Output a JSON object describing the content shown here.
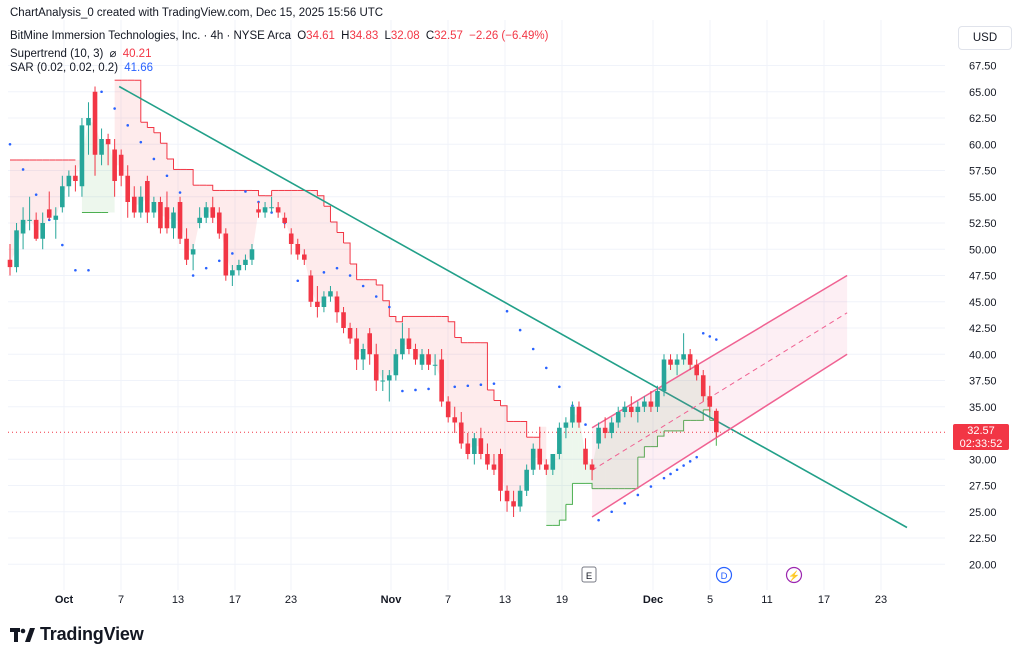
{
  "header": {
    "caption": "ChartAnalysis_0 created with TradingView.com, Dec 15, 2025 15:56 UTC",
    "symbol": "BitMine Immersion Technologies, Inc. · 4h · NYSE Arca",
    "ohlc": {
      "o_label": "O",
      "o_value": "34.61",
      "h_label": "H",
      "h_value": "34.83",
      "l_label": "L",
      "l_value": "32.08",
      "c_label": "C",
      "c_value": "32.57",
      "change": "−2.26 (−6.49%)"
    },
    "supertrend_label": "Supertrend (10, 3)",
    "supertrend_symbol": "⌀",
    "supertrend_value": "40.21",
    "sar_label": "SAR (0.02, 0.02, 0.2)",
    "sar_value": "41.66"
  },
  "currency_button": "USD",
  "price_tag": {
    "price": "32.57",
    "countdown": "02:33:52"
  },
  "brand": "TradingView",
  "event_markers": [
    {
      "letter": "E",
      "x_label": "21"
    },
    {
      "letter": "D",
      "x_label": "6"
    },
    {
      "letter": "⚡",
      "x_label": "13"
    }
  ],
  "colors": {
    "up": "#26a69a",
    "down": "#f23645",
    "trendline": "#22a089",
    "channel": "#f06292",
    "sar": "#2962ff",
    "supertrend_down": "#f23645",
    "supertrend_up": "#4caf50"
  },
  "chart_data": {
    "type": "candlestick",
    "timeframe": "4h",
    "x_tick_labels": [
      "Oct",
      "7",
      "13",
      "17",
      "23",
      "Nov",
      "7",
      "13",
      "19",
      "Dec",
      "5",
      "11",
      "17",
      "23"
    ],
    "y_tick_labels": [
      "67.50",
      "65.00",
      "62.50",
      "60.00",
      "57.50",
      "55.00",
      "52.50",
      "50.00",
      "47.50",
      "45.00",
      "42.50",
      "40.00",
      "37.50",
      "35.00",
      "30.00",
      "27.50",
      "25.00",
      "22.50",
      "20.00"
    ],
    "ylim": [
      18.5,
      70
    ],
    "last_price": 32.57,
    "candles": [
      {
        "o": 49.0,
        "h": 50.5,
        "l": 47.5,
        "c": 48.3
      },
      {
        "o": 48.3,
        "h": 52.5,
        "l": 47.8,
        "c": 51.8
      },
      {
        "o": 51.5,
        "h": 54.0,
        "l": 50.0,
        "c": 52.8
      },
      {
        "o": 52.8,
        "h": 55.0,
        "l": 51.8,
        "c": 52.8
      },
      {
        "o": 52.8,
        "h": 53.5,
        "l": 50.8,
        "c": 51.0
      },
      {
        "o": 51.0,
        "h": 53.5,
        "l": 50.0,
        "c": 52.5
      },
      {
        "o": 53.8,
        "h": 55.5,
        "l": 52.8,
        "c": 53.0
      },
      {
        "o": 52.8,
        "h": 54.0,
        "l": 51.0,
        "c": 53.2
      },
      {
        "o": 54.0,
        "h": 57.0,
        "l": 53.5,
        "c": 56.0
      },
      {
        "o": 56.0,
        "h": 57.5,
        "l": 55.0,
        "c": 57.0
      },
      {
        "o": 57.0,
        "h": 58.0,
        "l": 55.5,
        "c": 56.5
      },
      {
        "o": 56.0,
        "h": 62.5,
        "l": 55.0,
        "c": 61.8
      },
      {
        "o": 61.8,
        "h": 64.0,
        "l": 59.0,
        "c": 62.5
      },
      {
        "o": 65.0,
        "h": 65.5,
        "l": 57.0,
        "c": 59.0
      },
      {
        "o": 59.0,
        "h": 61.5,
        "l": 58.0,
        "c": 60.5
      },
      {
        "o": 60.5,
        "h": 61.0,
        "l": 58.0,
        "c": 60.0
      },
      {
        "o": 59.5,
        "h": 60.5,
        "l": 55.0,
        "c": 56.5
      },
      {
        "o": 59.0,
        "h": 59.5,
        "l": 56.0,
        "c": 57.0
      },
      {
        "o": 57.0,
        "h": 58.0,
        "l": 53.0,
        "c": 54.5
      },
      {
        "o": 55.0,
        "h": 56.0,
        "l": 53.0,
        "c": 53.5
      },
      {
        "o": 53.5,
        "h": 56.0,
        "l": 53.0,
        "c": 55.0
      },
      {
        "o": 56.5,
        "h": 57.0,
        "l": 52.5,
        "c": 53.5
      },
      {
        "o": 53.5,
        "h": 55.0,
        "l": 53.0,
        "c": 54.5
      },
      {
        "o": 54.5,
        "h": 55.0,
        "l": 51.5,
        "c": 52.0
      },
      {
        "o": 54.0,
        "h": 55.5,
        "l": 51.5,
        "c": 52.0
      },
      {
        "o": 52.0,
        "h": 54.0,
        "l": 51.0,
        "c": 53.5
      },
      {
        "o": 54.5,
        "h": 55.0,
        "l": 50.5,
        "c": 51.0
      },
      {
        "o": 51.0,
        "h": 52.0,
        "l": 48.5,
        "c": 49.0
      },
      {
        "o": 49.5,
        "h": 50.5,
        "l": 48.0,
        "c": 50.0
      },
      {
        "o": 52.5,
        "h": 54.0,
        "l": 52.0,
        "c": 53.0
      },
      {
        "o": 53.0,
        "h": 54.5,
        "l": 52.5,
        "c": 54.0
      },
      {
        "o": 54.0,
        "h": 55.0,
        "l": 52.5,
        "c": 53.0
      },
      {
        "o": 53.5,
        "h": 54.0,
        "l": 51.0,
        "c": 51.5
      },
      {
        "o": 51.5,
        "h": 52.0,
        "l": 47.0,
        "c": 47.5
      },
      {
        "o": 47.5,
        "h": 48.5,
        "l": 46.5,
        "c": 48.0
      },
      {
        "o": 48.0,
        "h": 49.0,
        "l": 47.5,
        "c": 48.5
      },
      {
        "o": 48.5,
        "h": 49.5,
        "l": 48.0,
        "c": 49.0
      },
      {
        "o": 49.0,
        "h": 50.5,
        "l": 48.5,
        "c": 50.0
      },
      {
        "o": 53.8,
        "h": 54.5,
        "l": 53.0,
        "c": 53.5
      },
      {
        "o": 53.5,
        "h": 54.5,
        "l": 53.0,
        "c": 54.0
      },
      {
        "o": 54.0,
        "h": 55.0,
        "l": 53.5,
        "c": 54.0
      },
      {
        "o": 54.0,
        "h": 54.5,
        "l": 53.0,
        "c": 53.5
      },
      {
        "o": 53.0,
        "h": 53.5,
        "l": 52.0,
        "c": 52.5
      },
      {
        "o": 51.5,
        "h": 52.0,
        "l": 49.5,
        "c": 50.5
      },
      {
        "o": 50.5,
        "h": 51.0,
        "l": 49.0,
        "c": 49.5
      },
      {
        "o": 49.5,
        "h": 50.0,
        "l": 48.5,
        "c": 49.0
      },
      {
        "o": 47.5,
        "h": 48.0,
        "l": 44.5,
        "c": 45.0
      },
      {
        "o": 45.0,
        "h": 46.5,
        "l": 43.5,
        "c": 44.5
      },
      {
        "o": 44.5,
        "h": 46.0,
        "l": 44.0,
        "c": 45.5
      },
      {
        "o": 45.5,
        "h": 46.5,
        "l": 45.0,
        "c": 46.0
      },
      {
        "o": 45.5,
        "h": 46.0,
        "l": 43.0,
        "c": 44.0
      },
      {
        "o": 44.0,
        "h": 44.5,
        "l": 42.0,
        "c": 42.5
      },
      {
        "o": 42.5,
        "h": 43.0,
        "l": 41.0,
        "c": 41.5
      },
      {
        "o": 41.5,
        "h": 42.5,
        "l": 38.5,
        "c": 39.5
      },
      {
        "o": 39.5,
        "h": 41.0,
        "l": 38.5,
        "c": 40.5
      },
      {
        "o": 42.0,
        "h": 42.5,
        "l": 39.0,
        "c": 40.0
      },
      {
        "o": 40.0,
        "h": 41.0,
        "l": 36.5,
        "c": 37.5
      },
      {
        "o": 37.5,
        "h": 38.5,
        "l": 36.5,
        "c": 37.5
      },
      {
        "o": 37.5,
        "h": 38.5,
        "l": 35.5,
        "c": 38.0
      },
      {
        "o": 38.0,
        "h": 40.5,
        "l": 37.5,
        "c": 40.0
      },
      {
        "o": 40.0,
        "h": 43.0,
        "l": 39.5,
        "c": 41.5
      },
      {
        "o": 41.5,
        "h": 42.5,
        "l": 40.0,
        "c": 40.5
      },
      {
        "o": 40.5,
        "h": 41.0,
        "l": 39.0,
        "c": 39.5
      },
      {
        "o": 39.0,
        "h": 40.5,
        "l": 38.5,
        "c": 40.0
      },
      {
        "o": 40.0,
        "h": 40.5,
        "l": 38.5,
        "c": 39.0
      },
      {
        "o": 39.0,
        "h": 40.0,
        "l": 38.0,
        "c": 39.0
      },
      {
        "o": 39.5,
        "h": 40.5,
        "l": 35.0,
        "c": 35.5
      },
      {
        "o": 35.5,
        "h": 36.0,
        "l": 33.5,
        "c": 34.0
      },
      {
        "o": 34.0,
        "h": 35.0,
        "l": 32.5,
        "c": 33.5
      },
      {
        "o": 33.5,
        "h": 34.5,
        "l": 31.0,
        "c": 31.5
      },
      {
        "o": 31.5,
        "h": 32.5,
        "l": 30.0,
        "c": 30.5
      },
      {
        "o": 30.5,
        "h": 32.5,
        "l": 29.5,
        "c": 32.0
      },
      {
        "o": 32.0,
        "h": 33.0,
        "l": 30.0,
        "c": 30.5
      },
      {
        "o": 30.5,
        "h": 31.5,
        "l": 29.0,
        "c": 29.5
      },
      {
        "o": 29.5,
        "h": 30.5,
        "l": 28.5,
        "c": 29.0
      },
      {
        "o": 30.5,
        "h": 31.0,
        "l": 26.0,
        "c": 27.0
      },
      {
        "o": 27.0,
        "h": 27.5,
        "l": 25.0,
        "c": 26.0
      },
      {
        "o": 26.0,
        "h": 27.0,
        "l": 24.5,
        "c": 25.5
      },
      {
        "o": 25.5,
        "h": 27.5,
        "l": 25.0,
        "c": 27.0
      },
      {
        "o": 27.0,
        "h": 29.5,
        "l": 26.5,
        "c": 29.0
      },
      {
        "o": 29.0,
        "h": 31.5,
        "l": 28.5,
        "c": 31.0
      },
      {
        "o": 31.0,
        "h": 32.5,
        "l": 29.0,
        "c": 29.5
      },
      {
        "o": 29.5,
        "h": 30.0,
        "l": 28.5,
        "c": 29.0
      },
      {
        "o": 29.0,
        "h": 30.5,
        "l": 28.5,
        "c": 30.5
      },
      {
        "o": 30.5,
        "h": 33.5,
        "l": 30.0,
        "c": 33.0
      },
      {
        "o": 33.0,
        "h": 34.0,
        "l": 32.0,
        "c": 33.5
      },
      {
        "o": 33.5,
        "h": 35.5,
        "l": 33.0,
        "c": 35.0
      },
      {
        "o": 35.0,
        "h": 35.5,
        "l": 33.0,
        "c": 33.5
      },
      {
        "o": 31.0,
        "h": 32.0,
        "l": 29.0,
        "c": 29.5
      },
      {
        "o": 29.5,
        "h": 30.0,
        "l": 28.0,
        "c": 29.0
      },
      {
        "o": 31.5,
        "h": 33.5,
        "l": 31.0,
        "c": 33.0
      },
      {
        "o": 33.0,
        "h": 34.0,
        "l": 32.0,
        "c": 32.5
      },
      {
        "o": 32.5,
        "h": 34.0,
        "l": 32.0,
        "c": 33.5
      },
      {
        "o": 33.5,
        "h": 35.0,
        "l": 33.0,
        "c": 34.5
      },
      {
        "o": 34.5,
        "h": 35.5,
        "l": 34.0,
        "c": 35.0
      },
      {
        "o": 35.0,
        "h": 36.0,
        "l": 34.0,
        "c": 34.5
      },
      {
        "o": 34.5,
        "h": 35.5,
        "l": 33.5,
        "c": 35.0
      },
      {
        "o": 35.0,
        "h": 36.0,
        "l": 34.5,
        "c": 35.5
      },
      {
        "o": 35.5,
        "h": 36.5,
        "l": 34.5,
        "c": 35.0
      },
      {
        "o": 35.0,
        "h": 37.0,
        "l": 34.5,
        "c": 36.5
      },
      {
        "o": 36.5,
        "h": 40.0,
        "l": 36.0,
        "c": 39.5
      },
      {
        "o": 39.5,
        "h": 40.0,
        "l": 38.5,
        "c": 39.0
      },
      {
        "o": 39.0,
        "h": 40.0,
        "l": 38.0,
        "c": 39.5
      },
      {
        "o": 39.5,
        "h": 42.0,
        "l": 39.0,
        "c": 40.0
      },
      {
        "o": 40.0,
        "h": 40.5,
        "l": 38.5,
        "c": 39.0
      },
      {
        "o": 39.0,
        "h": 39.5,
        "l": 37.5,
        "c": 38.0
      },
      {
        "o": 38.0,
        "h": 38.5,
        "l": 35.5,
        "c": 36.0
      },
      {
        "o": 36.0,
        "h": 37.0,
        "l": 34.5,
        "c": 35.0
      },
      {
        "o": 34.61,
        "h": 34.83,
        "l": 32.08,
        "c": 32.57
      }
    ],
    "supertrend": {
      "name": "Supertrend (10, 3)",
      "last": 40.21
    },
    "sar": {
      "name": "SAR (0.02, 0.02, 0.2)",
      "last": 41.66
    }
  }
}
